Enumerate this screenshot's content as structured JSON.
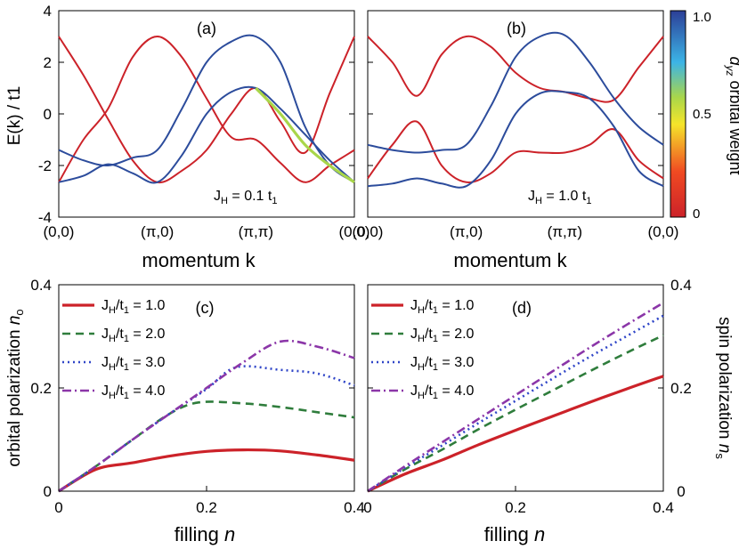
{
  "colors": {
    "red": "#cc2229",
    "blue": "#2c4c9c",
    "green": "#2f7d3c",
    "purple": "#8b36a8",
    "lightblue": "#3046c8",
    "colorbar_stops": [
      "#cc2229",
      "#f04a22",
      "#f5e52a",
      "#a9d64a",
      "#3cb4e6",
      "#2c3f97"
    ]
  },
  "chart_data": [
    {
      "id": "a",
      "type": "line",
      "panel_label": "(a)",
      "xlabel": "momentum k",
      "ylabel": "E(k) / t1",
      "xticklabels": [
        "(0,0)",
        "(π,0)",
        "(π,π)",
        "(0,0)"
      ],
      "yticks": [
        -4,
        -2,
        0,
        2,
        4
      ],
      "ylim": [
        -4,
        4
      ],
      "annotation": "J",
      "annotation_sub": "H",
      "annotation_rest": " = 0.1 t",
      "annotation_sub2": "1",
      "x_segments": [
        "(0,0)→(π,0)",
        "(π,0)→(π,π)",
        "(π,π)→(0,0)"
      ],
      "series": [
        {
          "name": "band1",
          "color": "red",
          "x": [
            0,
            0.25,
            0.5,
            0.75,
            1,
            1.25,
            1.5,
            1.75,
            2,
            2.25,
            2.5,
            2.75,
            3
          ],
          "y": [
            3,
            1.5,
            -0.2,
            -1.8,
            -2.65,
            -2.2,
            -1.4,
            0.0,
            1.0,
            -0.3,
            -1.5,
            0.8,
            3
          ]
        },
        {
          "name": "band2",
          "color": "red",
          "x": [
            0,
            0.25,
            0.5,
            0.75,
            1,
            1.25,
            1.5,
            1.75,
            2,
            2.25,
            2.5,
            2.75,
            3
          ],
          "y": [
            -2.65,
            -1.0,
            0.2,
            2.2,
            3.0,
            2.2,
            0.6,
            -0.9,
            -1.0,
            -1.9,
            -2.65,
            -2.0,
            -1.4
          ]
        },
        {
          "name": "band3",
          "color": "blue",
          "x": [
            0,
            0.25,
            0.5,
            0.75,
            1,
            1.25,
            1.5,
            1.75,
            2,
            2.25,
            2.5,
            2.75,
            3
          ],
          "y": [
            -1.4,
            -1.8,
            -2.0,
            -1.7,
            -1.4,
            0.2,
            2.0,
            2.8,
            3.0,
            2.0,
            -0.5,
            -2.0,
            -2.65
          ]
        },
        {
          "name": "band4",
          "color": "blue",
          "x": [
            0,
            0.25,
            0.5,
            0.75,
            1,
            1.25,
            1.5,
            1.75,
            2,
            2.25,
            2.5,
            2.75,
            3
          ],
          "y": [
            -2.65,
            -2.4,
            -1.95,
            -2.3,
            -2.65,
            -1.6,
            0.0,
            0.85,
            1.0,
            0.2,
            -0.8,
            -1.8,
            -2.65
          ]
        }
      ]
    },
    {
      "id": "b",
      "type": "line",
      "panel_label": "(b)",
      "xlabel": "momentum k",
      "xticklabels": [
        "(0,0)",
        "(π,0)",
        "(π,π)",
        "(0,0)"
      ],
      "ylim": [
        -4,
        4
      ],
      "annotation": "J",
      "annotation_sub": "H",
      "annotation_rest": " = 1.0 t",
      "annotation_sub2": "1",
      "series": [
        {
          "name": "band1",
          "color": "red",
          "x": [
            0,
            0.25,
            0.5,
            0.75,
            1,
            1.25,
            1.5,
            1.75,
            2,
            2.25,
            2.5,
            2.75,
            3
          ],
          "y": [
            3,
            2.0,
            0.7,
            2.3,
            3.0,
            2.6,
            1.6,
            1.0,
            0.85,
            0.6,
            0.55,
            1.8,
            3
          ]
        },
        {
          "name": "band2",
          "color": "red",
          "x": [
            0,
            0.25,
            0.5,
            0.75,
            1,
            1.25,
            1.5,
            1.75,
            2,
            2.25,
            2.5,
            2.75,
            3
          ],
          "y": [
            -2.5,
            -1.2,
            -0.3,
            -2.0,
            -2.65,
            -2.3,
            -1.5,
            -1.5,
            -1.5,
            -1.2,
            -0.6,
            -1.8,
            -2.5
          ]
        },
        {
          "name": "band3",
          "color": "blue",
          "x": [
            0,
            0.25,
            0.5,
            0.75,
            1,
            1.25,
            1.5,
            1.75,
            2,
            2.25,
            2.5,
            2.75,
            3
          ],
          "y": [
            -1.2,
            -1.4,
            -1.5,
            -1.4,
            -1.2,
            0.3,
            2.2,
            3.0,
            3.05,
            2.0,
            0.6,
            -0.5,
            -1.2
          ]
        },
        {
          "name": "band4",
          "color": "blue",
          "x": [
            0,
            0.25,
            0.5,
            0.75,
            1,
            1.25,
            1.5,
            1.75,
            2,
            2.25,
            2.5,
            2.75,
            3
          ],
          "y": [
            -2.8,
            -2.7,
            -2.5,
            -2.7,
            -2.8,
            -1.8,
            0.0,
            0.8,
            0.85,
            0.6,
            -0.5,
            -2.2,
            -2.8
          ]
        }
      ]
    },
    {
      "id": "colorbar",
      "type": "heatmap",
      "label_main": "d",
      "label_sub": "yz",
      "label_rest": " orbital weight",
      "ticks": [
        "1.0",
        "0.5",
        "0"
      ],
      "range": [
        0,
        1
      ]
    },
    {
      "id": "c",
      "type": "line",
      "panel_label": "(c)",
      "xlabel": "filling",
      "xlabel_var": "n",
      "ylabel": "orbital polarization",
      "ylabel_var": "n",
      "ylabel_sub": "o",
      "xlim": [
        0,
        0.4
      ],
      "ylim": [
        0,
        0.4
      ],
      "xticks": [
        "0",
        "0.2",
        "0.4"
      ],
      "yticks": [
        "0",
        "0.2",
        "0.4"
      ],
      "legend": [
        "J",
        "H",
        "/t",
        "1",
        " = "
      ],
      "series": [
        {
          "name": "1.0",
          "color": "red",
          "dash": "",
          "x": [
            0,
            0.05,
            0.1,
            0.15,
            0.2,
            0.25,
            0.3,
            0.35,
            0.4
          ],
          "y": [
            0,
            0.042,
            0.055,
            0.068,
            0.077,
            0.08,
            0.078,
            0.07,
            0.06
          ]
        },
        {
          "name": "2.0",
          "color": "green",
          "dash": "9,6",
          "x": [
            0,
            0.05,
            0.1,
            0.15,
            0.19,
            0.25,
            0.3,
            0.35,
            0.4
          ],
          "y": [
            0,
            0.048,
            0.1,
            0.15,
            0.172,
            0.17,
            0.163,
            0.153,
            0.143
          ]
        },
        {
          "name": "3.0",
          "color": "lightblue",
          "dash": "2,4",
          "x": [
            0,
            0.05,
            0.1,
            0.15,
            0.2,
            0.24,
            0.3,
            0.35,
            0.4
          ],
          "y": [
            0,
            0.048,
            0.1,
            0.15,
            0.198,
            0.24,
            0.235,
            0.228,
            0.205
          ]
        },
        {
          "name": "4.0",
          "color": "purple",
          "dash": "10,4,2,4",
          "x": [
            0,
            0.05,
            0.1,
            0.15,
            0.2,
            0.25,
            0.3,
            0.35,
            0.4
          ],
          "y": [
            0,
            0.048,
            0.1,
            0.15,
            0.2,
            0.25,
            0.29,
            0.28,
            0.258
          ]
        }
      ]
    },
    {
      "id": "d",
      "type": "line",
      "panel_label": "(d)",
      "xlabel": "filling",
      "xlabel_var": "n",
      "ylabel": "spin polarization",
      "ylabel_var": "n",
      "ylabel_sub": "s",
      "xlim": [
        0,
        0.4
      ],
      "ylim": [
        0,
        0.4
      ],
      "xticks": [
        "0",
        "0.2",
        "0.4"
      ],
      "yticks": [
        "0",
        "0.2",
        "0.4"
      ],
      "legend": [
        "J",
        "H",
        "/t",
        "1",
        " = "
      ],
      "series": [
        {
          "name": "1.0",
          "color": "red",
          "dash": "",
          "x": [
            0,
            0.05,
            0.1,
            0.15,
            0.2,
            0.25,
            0.3,
            0.35,
            0.4
          ],
          "y": [
            0,
            0.033,
            0.06,
            0.09,
            0.118,
            0.145,
            0.172,
            0.198,
            0.223
          ]
        },
        {
          "name": "2.0",
          "color": "green",
          "dash": "9,6",
          "x": [
            0,
            0.05,
            0.1,
            0.15,
            0.2,
            0.25,
            0.3,
            0.35,
            0.4
          ],
          "y": [
            0,
            0.042,
            0.08,
            0.12,
            0.158,
            0.195,
            0.232,
            0.268,
            0.302
          ]
        },
        {
          "name": "3.0",
          "color": "lightblue",
          "dash": "2,4",
          "x": [
            0,
            0.05,
            0.1,
            0.15,
            0.2,
            0.25,
            0.3,
            0.35,
            0.4
          ],
          "y": [
            0,
            0.045,
            0.088,
            0.132,
            0.175,
            0.218,
            0.26,
            0.3,
            0.34
          ]
        },
        {
          "name": "4.0",
          "color": "purple",
          "dash": "10,4,2,4",
          "x": [
            0,
            0.05,
            0.1,
            0.15,
            0.2,
            0.25,
            0.3,
            0.35,
            0.4
          ],
          "y": [
            0,
            0.048,
            0.094,
            0.14,
            0.186,
            0.232,
            0.278,
            0.322,
            0.365
          ]
        }
      ]
    }
  ]
}
